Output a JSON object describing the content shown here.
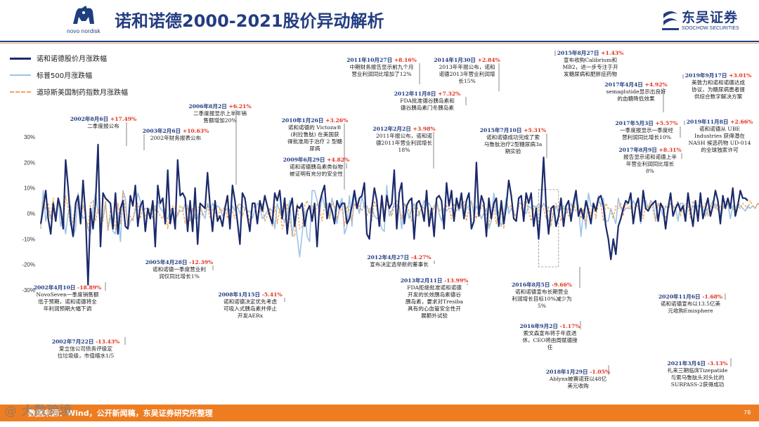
{
  "header": {
    "title": "诺和诺德2000-2021股价异动解析",
    "left_logo": {
      "icon": "novo-nordisk-bull-icon",
      "text": "novo nordisk"
    },
    "right_logo": {
      "icon": "soochow-securities-icon",
      "cn": "东吴证券",
      "en": "SOOCHOW SECURITIES"
    },
    "accent_color": "#233d81",
    "orange_color": "#ee7d22"
  },
  "legend": [
    {
      "label": "诺和诺德股价月涨跌幅",
      "color": "#1b2a6b",
      "style": "solid-thick"
    },
    {
      "label": "标普500月涨跌幅",
      "color": "#9dc3e6",
      "style": "solid"
    },
    {
      "label": "道琼斯美国制药指数月涨跌幅",
      "color": "#f0a25a",
      "style": "dashed"
    }
  ],
  "chart_data": {
    "type": "line",
    "title": "诺和诺德2000-2021股价异动解析",
    "x_range": [
      "2000-01",
      "2021-12"
    ],
    "ylim": [
      -30,
      30
    ],
    "y_ticks": [
      "30%",
      "20%",
      "10%",
      "0%",
      "-10%",
      "-20%",
      "-30%"
    ],
    "y_tick_values": [
      30,
      20,
      10,
      0,
      -10,
      -20,
      -30
    ],
    "series": [
      {
        "name": "诺和诺德股价月涨跌幅",
        "values": [
          -4,
          2,
          9,
          -2,
          -8,
          4,
          -3,
          6,
          2,
          -6,
          21,
          10,
          -3,
          -9,
          4,
          7,
          -4,
          13,
          -1,
          -28,
          2,
          -6,
          4,
          27,
          -13,
          8,
          6,
          5,
          4,
          -6,
          8,
          -8,
          2,
          5,
          -5,
          -6,
          7,
          3,
          11,
          -5,
          3,
          5,
          -7,
          2,
          -2,
          5,
          -13,
          11,
          4,
          6,
          -4,
          17,
          -4,
          2,
          -6,
          21,
          7,
          8,
          6,
          -7,
          5,
          -7,
          10,
          -12,
          4,
          3,
          2,
          16,
          3,
          -7,
          5,
          -3,
          -1,
          -5,
          2,
          7,
          -6,
          11,
          5,
          -3,
          -12,
          8,
          6,
          -1,
          -7,
          4,
          4,
          -4,
          5,
          1,
          7,
          3,
          -1,
          -4,
          8,
          5,
          9,
          -2,
          6,
          -8,
          2,
          6,
          -5,
          3,
          2,
          4,
          -5,
          1,
          3,
          -3,
          4,
          -13,
          4,
          8,
          11,
          -2,
          4,
          1,
          -4,
          5,
          2,
          4,
          4,
          -4,
          -2,
          3,
          9,
          2,
          6,
          7,
          12,
          -8,
          -10,
          2,
          10,
          5,
          -5,
          7,
          -3,
          7,
          2,
          4,
          17,
          -6,
          8,
          12,
          -4,
          3,
          5,
          6,
          -10,
          4,
          5,
          2,
          -3,
          9,
          -5,
          2,
          -9,
          6,
          7,
          5,
          -6,
          12,
          3,
          9,
          -3,
          6,
          2,
          8,
          -2,
          5,
          8,
          -6,
          -3,
          20,
          -1,
          7,
          4,
          -9,
          6,
          -2,
          4,
          6,
          -5,
          5,
          -4,
          3,
          13,
          7,
          -2,
          -3,
          6,
          7,
          -3,
          8,
          4,
          8,
          -5,
          2,
          -10,
          4,
          22,
          3,
          -8,
          2,
          3,
          -5,
          -1,
          6,
          -5,
          3,
          5,
          -3,
          4,
          9,
          -1,
          2,
          -2,
          5,
          1,
          -4,
          4,
          1,
          6,
          7,
          3,
          -5,
          -10,
          -18,
          -10,
          -16,
          -5,
          -2,
          2,
          5,
          4,
          8,
          -4,
          3,
          6,
          -3,
          9,
          2,
          1,
          3,
          4,
          5,
          -3,
          4,
          2,
          -6,
          2,
          8,
          -1,
          2,
          4,
          1,
          3,
          -3,
          8,
          1,
          -5,
          5,
          -3,
          8,
          -2,
          2,
          6,
          -1,
          3,
          9,
          5,
          -4,
          7,
          2,
          6,
          2,
          10,
          -1,
          3,
          9,
          6,
          6,
          5
        ]
      },
      {
        "name": "标普500月涨跌幅",
        "values": [
          -5,
          9,
          -3,
          2,
          -2,
          2,
          -1,
          6,
          -5,
          -1,
          -8,
          0,
          3,
          -9,
          -6,
          8,
          1,
          -2,
          -1,
          -6,
          -8,
          2,
          8,
          1,
          -2,
          -2,
          4,
          -6,
          -1,
          -7,
          -8,
          0,
          -11,
          9,
          6,
          -6,
          -3,
          -2,
          1,
          8,
          5,
          1,
          2,
          2,
          -1,
          5,
          1,
          5,
          2,
          1,
          -2,
          -2,
          1,
          2,
          -3,
          0,
          1,
          1,
          4,
          3,
          -3,
          2,
          -2,
          -2,
          3,
          0,
          -2,
          4,
          1,
          4,
          2,
          3,
          2,
          -1,
          1,
          2,
          -3,
          3,
          1,
          3,
          0,
          3,
          2,
          1,
          1,
          -2,
          1,
          4,
          3,
          -2,
          -1,
          1,
          2,
          1,
          -6,
          4,
          1,
          -2,
          -3,
          -1,
          5,
          -9,
          -1,
          -9,
          -17,
          -8,
          1,
          -9,
          -11,
          9,
          9,
          5,
          0,
          7,
          3,
          4,
          -2,
          6,
          2,
          -4,
          3,
          6,
          -8,
          -5,
          7,
          -5,
          9,
          4,
          0,
          7,
          2,
          3,
          0,
          3,
          -1,
          -2,
          -2,
          -6,
          -7,
          11,
          -1,
          1,
          4,
          3,
          3,
          -6,
          4,
          2,
          -2,
          2,
          4,
          -1,
          0,
          2,
          5,
          3,
          4,
          2,
          2,
          5,
          0,
          -3,
          2,
          1,
          2,
          2,
          -1,
          4,
          1,
          4,
          -2,
          2,
          3,
          5,
          -1,
          3,
          1,
          -2,
          0,
          2,
          -6,
          -3,
          8,
          0,
          -2,
          -5,
          0,
          6,
          0,
          2,
          0,
          -1,
          4,
          4,
          1,
          0,
          3,
          2,
          3,
          2,
          4,
          2,
          4,
          2,
          -3,
          -3,
          0,
          3,
          0,
          2,
          3,
          0,
          2,
          4,
          1,
          7,
          3,
          -9,
          1,
          -6,
          8,
          3,
          3,
          2,
          7,
          3,
          6,
          -3,
          -3,
          2,
          -1,
          -4,
          6,
          2,
          1,
          2,
          2,
          2,
          5,
          3,
          3,
          -4,
          5,
          5,
          2,
          5,
          4,
          -3,
          4,
          2,
          -1,
          3,
          2,
          4,
          3,
          2,
          -3,
          4,
          4,
          -2,
          5,
          1,
          3,
          2,
          3,
          3,
          2,
          -1,
          2,
          3,
          5,
          2,
          4,
          -3,
          2,
          3,
          4,
          -2,
          3,
          2,
          4,
          3,
          2,
          1,
          3,
          2,
          3,
          2,
          4,
          3
        ]
      },
      {
        "name": "道琼斯美国制药指数月涨跌幅",
        "values": [
          -6,
          5,
          2,
          4,
          -2,
          6,
          -1,
          4,
          2,
          -4,
          7,
          2,
          -5,
          -3,
          4,
          3,
          -2,
          3,
          -1,
          -6,
          4,
          5,
          -3,
          2,
          -4,
          -3,
          5,
          -7,
          2,
          -3,
          -6,
          4,
          -4,
          8,
          2,
          -4,
          -1,
          -3,
          3,
          4,
          -2,
          2,
          -1,
          1,
          2,
          -2,
          3,
          1,
          -1,
          -2,
          2,
          -6,
          1,
          3,
          2,
          -1,
          3,
          2,
          -4,
          3,
          -3,
          2,
          -1,
          2,
          3,
          -1,
          1,
          3,
          -2,
          2,
          1,
          -3,
          2,
          1,
          3,
          -2,
          2,
          1,
          -2,
          3,
          4,
          -1,
          2,
          1,
          -3,
          2,
          3,
          -2,
          1,
          4,
          -3,
          -1,
          2,
          -5,
          3,
          -4,
          2,
          -6,
          -3,
          4,
          -2,
          -8,
          -9,
          4,
          -6,
          -5,
          3,
          5,
          2,
          3,
          -1,
          4,
          2,
          -3,
          3,
          1,
          -2,
          4,
          3,
          -2,
          1,
          2,
          -5,
          3,
          1,
          -3,
          4,
          2,
          3,
          1,
          4,
          -1,
          2,
          -3,
          5,
          2,
          -2,
          3,
          1,
          4,
          2,
          -1,
          3,
          5,
          2,
          -2,
          4,
          3,
          1,
          -3,
          2,
          4,
          -1,
          3,
          2,
          4,
          1,
          -2,
          3,
          5,
          1,
          2,
          -1,
          3,
          2,
          -2,
          4,
          1,
          3,
          2,
          5,
          -3,
          2,
          4,
          1,
          -2,
          3,
          2,
          4,
          -1,
          -5,
          2,
          3,
          -4,
          1,
          2,
          -6,
          4,
          2,
          3,
          1,
          -2,
          3,
          2,
          4,
          5,
          1,
          -3,
          2,
          3,
          1,
          4,
          2,
          -2,
          3,
          -5,
          2,
          4,
          1,
          -3,
          2,
          3,
          -1,
          2,
          4,
          1,
          3,
          -2,
          2,
          -4,
          3,
          -1,
          4,
          -2,
          5,
          3,
          -3,
          4,
          2,
          1,
          -2,
          3,
          2,
          4,
          -1,
          5,
          2,
          3,
          -4,
          4,
          2,
          1,
          -2,
          3,
          2,
          5,
          1,
          -3,
          4,
          2,
          3,
          -2,
          1,
          4,
          2,
          3,
          5,
          -1,
          2,
          4,
          3,
          -2,
          5,
          2,
          1,
          3,
          2,
          4,
          -1,
          3,
          2,
          4,
          1,
          3,
          2,
          5,
          4,
          3,
          2,
          1,
          3,
          2,
          4,
          3,
          2,
          5,
          3,
          2,
          4,
          3,
          2,
          4,
          3
        ]
      }
    ],
    "annotations": [
      {
        "date": "2002年8月6日",
        "pct": "+17.49%",
        "text": [
          "二季度报公布"
        ]
      },
      {
        "date": "2002年4月10日",
        "pct": "-18.89%",
        "text": [
          "NovoSeven一季度销售额",
          "低于预期，诺和诺德将全",
          "年利润预期大幅下调"
        ]
      },
      {
        "date": "2002年7月22日",
        "pct": "-13.43%",
        "text": [
          "爱立信公司债务评级定",
          "位垃圾级，市值缩水1/5"
        ]
      },
      {
        "date": "2003年2月6日",
        "pct": "+10.63%",
        "text": [
          "2002年财务报表公布"
        ]
      },
      {
        "date": "2006年8月2日",
        "pct": "+6.21%",
        "text": [
          "二季度报显示上半年销",
          "售额增加20%"
        ]
      },
      {
        "date": "2005年4月28日",
        "pct": "-12.39%",
        "text": [
          "诺和诺德一季度营业利",
          "润仅同比增长1%"
        ]
      },
      {
        "date": "2008年1月15日",
        "pct": "-5.41%",
        "text": [
          "诺和诺德决定优先考虑",
          "可吸入式胰岛素并停止",
          "开发AERx"
        ]
      },
      {
        "date": "2010年1月26日",
        "pct": "+3.26%",
        "text": [
          "诺和诺德的 Victoza®",
          "(利拉鲁肽) 在美国获",
          "得批准用于治疗 2 型糖",
          "尿病"
        ]
      },
      {
        "date": "2009年6月29日",
        "pct": "+4.82%",
        "text": [
          "诺和诺德胰岛素类似物",
          "被证明有充分的安全性"
        ]
      },
      {
        "date": "2011年10月27日",
        "pct": "+8.16%",
        "text": [
          "中期财务报告显示前九个月",
          "营业利润同比增加了12%"
        ]
      },
      {
        "date": "2012年11月8日",
        "pct": "+7.32%",
        "text": [
          "FDA批准德谷胰岛素和",
          "德谷胰岛素门冬胰岛素"
        ]
      },
      {
        "date": "2012年2月2日",
        "pct": "+3.98%",
        "text": [
          "2011年报公布，诺和诺",
          "德2011年营业利润增长",
          "18%"
        ]
      },
      {
        "date": "2012年4月27日",
        "pct": "-4.27%",
        "text": [
          "宣布决定选举新的董事长"
        ]
      },
      {
        "date": "2013年2月11日",
        "pct": "-13.99%",
        "text": [
          "FDA拒绝批准诺和诺德",
          "开发的长效胰岛素德谷",
          "胰岛素，要求对Tresiba",
          "具有的心血管安全性开",
          "展额外试验"
        ]
      },
      {
        "date": "2014年1月30日",
        "pct": "+2.84%",
        "text": [
          "2013年年报公布，诺和",
          "诺德2013年营业利润增",
          "长15%"
        ]
      },
      {
        "date": "2015年7月10日",
        "pct": "+5.31%",
        "text": [
          "诺和诺德成功完成了索",
          "马鲁肽治疗2型糖尿病3a",
          "期实验"
        ]
      },
      {
        "date": "2015年8月27日",
        "pct": "+1.43%",
        "text": [
          "宣布收购Calibrium和",
          "MB2，进一步专注于开",
          "发糖尿病和肥胖症药物"
        ]
      },
      {
        "date": "2017年4月4日",
        "pct": "+4.92%",
        "text": [
          "semaglutide显示出良好",
          "的血糖降低效果"
        ]
      },
      {
        "date": "2017年5月3日",
        "pct": "+5.57%",
        "text": [
          "一季度报显示一季度经",
          "营利润同比增长10%"
        ]
      },
      {
        "date": "2017年8月9日",
        "pct": "+8.31%",
        "text": [
          "报告显示诺和诺德上半",
          "年营业利润同比增长",
          "8%"
        ]
      },
      {
        "date": "2016年8月5日",
        "pct": "-9.66%",
        "text": [
          "诺和诺德宣布长期营业",
          "利润增长目标10%减少为",
          "5%"
        ]
      },
      {
        "date": "2016年9月2日",
        "pct": "-1.17%",
        "text": [
          "索文森宣布将于年底退",
          "休，CEO将由周赋德接",
          "任"
        ]
      },
      {
        "date": "2018年1月29日",
        "pct": "-1.05%",
        "text": [
          "Ablynx被赛诺菲以48亿",
          "美元收购"
        ]
      },
      {
        "date": "2019年9月17日",
        "pct": "+3.01%",
        "text": [
          "美敦力和诺和诺德达成",
          "协议，为糖尿病患者提",
          "供综合数字解决方案"
        ]
      },
      {
        "date": "2019年11月8日",
        "pct": "+2.66%",
        "text": [
          "诺和诺德从 UBE",
          "Industries 获得潜在",
          "NASH 候选药物 UD-014",
          "的全球独家许可"
        ]
      },
      {
        "date": "2020年11月6日",
        "pct": "-1.68%",
        "text": [
          "诺和诺德宣布以13.5亿美",
          "元收购Emisphere"
        ]
      },
      {
        "date": "2021年3月4日",
        "pct": "-3.13%",
        "text": [
          "礼来三期临床Tizepatide",
          "与索马鲁肽头对头比的",
          "SURPASS-2获得成功"
        ]
      }
    ]
  },
  "footer": {
    "source": "数据来源：Wind，公开新闻稿，东吴证券研究所整理",
    "page": "78",
    "watermark": "@ 大数跨境"
  }
}
